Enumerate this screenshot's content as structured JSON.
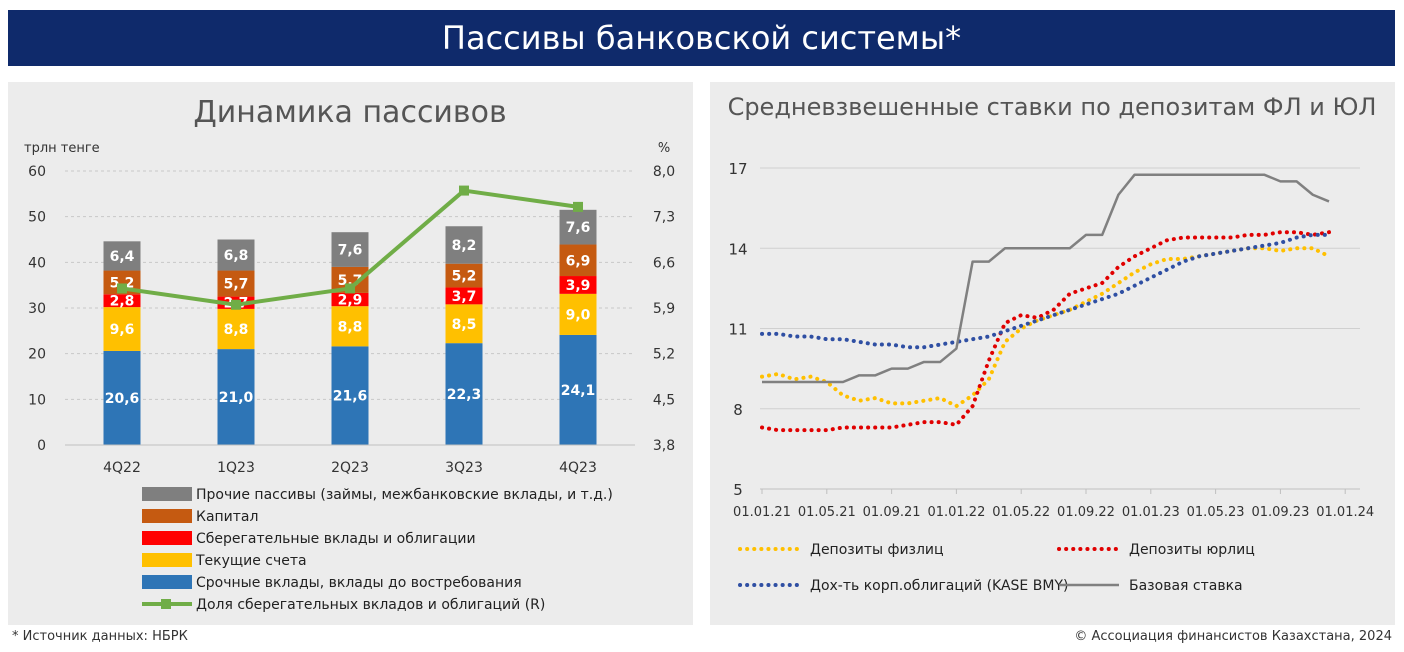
{
  "header": {
    "title": "Пассивы банковской системы*"
  },
  "footer": {
    "source": "* Источник данных: НБРК",
    "copyright": "© Ассоциация финансистов Казахстана, 2024"
  },
  "colors": {
    "banner": "#0f2a6b",
    "panel_bg": "#ececec",
    "grey": "#7f7f7f",
    "capital": "#c55a11",
    "savings": "#ff0000",
    "current": "#ffc000",
    "term": "#2e75b6",
    "share_line": "#70ad47",
    "fl": "#ffc000",
    "ul": "#e00000",
    "corp": "#2f4fa3",
    "base": "#808080"
  },
  "chart_data": [
    {
      "type": "bar",
      "stacked": true,
      "title": "Динамика пассивов",
      "ylabel": "трлн тенге",
      "y2label": "%",
      "ylim": [
        0,
        60
      ],
      "y2lim": [
        3.8,
        8.0
      ],
      "yticks": [
        "0",
        "10",
        "20",
        "30",
        "40",
        "50",
        "60"
      ],
      "y2ticks": [
        "3,8",
        "4,5",
        "5,2",
        "5,9",
        "6,6",
        "7,3",
        "8,0"
      ],
      "grid": true,
      "legend_position": "bottom",
      "categories": [
        "4Q22",
        "1Q23",
        "2Q23",
        "3Q23",
        "4Q23"
      ],
      "series": [
        {
          "name": "Срочные вклады, вклады до востребования",
          "color": "#2e75b6",
          "values": [
            20.6,
            21.0,
            21.6,
            22.3,
            24.1
          ],
          "labels": [
            "20,6",
            "21,0",
            "21,6",
            "22,3",
            "24,1"
          ]
        },
        {
          "name": "Текущие счета",
          "color": "#ffc000",
          "values": [
            9.6,
            8.8,
            8.8,
            8.5,
            9.0
          ],
          "labels": [
            "9,6",
            "8,8",
            "8,8",
            "8,5",
            "9,0"
          ]
        },
        {
          "name": "Сберегательные вклады и облигации",
          "color": "#ff0000",
          "values": [
            2.8,
            2.7,
            2.9,
            3.7,
            3.9
          ],
          "labels": [
            "2,8",
            "2,7",
            "2,9",
            "3,7",
            "3,9"
          ]
        },
        {
          "name": "Капитал",
          "color": "#c55a11",
          "values": [
            5.2,
            5.7,
            5.7,
            5.2,
            6.9
          ],
          "labels": [
            "5,2",
            "5,7",
            "5,7",
            "5,2",
            "6,9"
          ]
        },
        {
          "name": "Прочие пассивы (займы, межбанковские вклады, и т.д.)",
          "color": "#7f7f7f",
          "values": [
            6.4,
            6.8,
            7.6,
            8.2,
            7.6
          ],
          "labels": [
            "6,4",
            "6,8",
            "7,6",
            "8,2",
            "7,6"
          ]
        }
      ],
      "line_series": {
        "name": "Доля сберегательных вкладов и облигаций (R)",
        "color": "#70ad47",
        "axis": "right",
        "values": [
          6.2,
          5.95,
          6.2,
          7.7,
          7.45
        ]
      },
      "legend_order": [
        "Прочие пассивы (займы, межбанковские вклады, и т.д.)",
        "Капитал",
        "Сберегательные вклады и облигации",
        "Текущие счета",
        "Срочные вклады, вклады до востребования",
        "Доля сберегательных вкладов и облигаций (R)"
      ]
    },
    {
      "type": "line",
      "title": "Средневзвешенные ставки по депозитам ФЛ и ЮЛ",
      "ylim": [
        5,
        17
      ],
      "yticks": [
        "5",
        "8",
        "11",
        "14",
        "17"
      ],
      "x_tick_labels": [
        "01.01.21",
        "01.05.21",
        "01.09.21",
        "01.01.22",
        "01.05.22",
        "01.09.22",
        "01.01.23",
        "01.05.23",
        "01.09.23",
        "01.01.24"
      ],
      "grid": true,
      "legend_position": "bottom",
      "series": [
        {
          "name": "Депозиты физлиц",
          "style": "dotted",
          "color": "#ffc000",
          "x": [
            "2021-01",
            "2021-02",
            "2021-03",
            "2021-04",
            "2021-05",
            "2021-06",
            "2021-07",
            "2021-08",
            "2021-09",
            "2021-10",
            "2021-11",
            "2021-12",
            "2022-01",
            "2022-02",
            "2022-03",
            "2022-04",
            "2022-05",
            "2022-06",
            "2022-07",
            "2022-08",
            "2022-09",
            "2022-10",
            "2022-11",
            "2022-12",
            "2023-01",
            "2023-02",
            "2023-03",
            "2023-04",
            "2023-05",
            "2023-06",
            "2023-07",
            "2023-08",
            "2023-09",
            "2023-10",
            "2023-11",
            "2023-12"
          ],
          "y": [
            9.2,
            9.3,
            9.1,
            9.2,
            9.0,
            8.5,
            8.3,
            8.4,
            8.2,
            8.2,
            8.3,
            8.4,
            8.1,
            8.5,
            9.1,
            10.5,
            11.0,
            11.3,
            11.5,
            11.7,
            12.0,
            12.3,
            12.7,
            13.1,
            13.4,
            13.6,
            13.6,
            13.7,
            13.8,
            13.9,
            14.0,
            14.0,
            13.9,
            14.0,
            14.0,
            13.7
          ]
        },
        {
          "name": "Депозиты юрлиц",
          "style": "dotted",
          "color": "#e00000",
          "x": [
            "2021-01",
            "2021-02",
            "2021-03",
            "2021-04",
            "2021-05",
            "2021-06",
            "2021-07",
            "2021-08",
            "2021-09",
            "2021-10",
            "2021-11",
            "2021-12",
            "2022-01",
            "2022-02",
            "2022-03",
            "2022-04",
            "2022-05",
            "2022-06",
            "2022-07",
            "2022-08",
            "2022-09",
            "2022-10",
            "2022-11",
            "2022-12",
            "2023-01",
            "2023-02",
            "2023-03",
            "2023-04",
            "2023-05",
            "2023-06",
            "2023-07",
            "2023-08",
            "2023-09",
            "2023-10",
            "2023-11",
            "2023-12"
          ],
          "y": [
            7.3,
            7.2,
            7.2,
            7.2,
            7.2,
            7.3,
            7.3,
            7.3,
            7.3,
            7.4,
            7.5,
            7.5,
            7.4,
            8.1,
            9.8,
            11.2,
            11.5,
            11.4,
            11.7,
            12.3,
            12.5,
            12.7,
            13.3,
            13.7,
            14.0,
            14.3,
            14.4,
            14.4,
            14.4,
            14.4,
            14.5,
            14.5,
            14.6,
            14.6,
            14.5,
            14.6
          ]
        },
        {
          "name": "Дох-ть корп.облигаций (KASE BMY)",
          "style": "dotted",
          "color": "#2f4fa3",
          "x": [
            "2021-01",
            "2021-02",
            "2021-03",
            "2021-04",
            "2021-05",
            "2021-06",
            "2021-07",
            "2021-08",
            "2021-09",
            "2021-10",
            "2021-11",
            "2021-12",
            "2022-01",
            "2022-02",
            "2022-03",
            "2022-04",
            "2022-05",
            "2022-06",
            "2022-07",
            "2022-08",
            "2022-09",
            "2022-10",
            "2022-11",
            "2022-12",
            "2023-01",
            "2023-02",
            "2023-03",
            "2023-04",
            "2023-05",
            "2023-06",
            "2023-07",
            "2023-08",
            "2023-09",
            "2023-10",
            "2023-11",
            "2023-12"
          ],
          "y": [
            10.8,
            10.8,
            10.7,
            10.7,
            10.6,
            10.6,
            10.5,
            10.4,
            10.4,
            10.3,
            10.3,
            10.4,
            10.5,
            10.6,
            10.7,
            10.9,
            11.1,
            11.3,
            11.5,
            11.7,
            11.9,
            12.1,
            12.3,
            12.6,
            12.9,
            13.2,
            13.5,
            13.7,
            13.8,
            13.9,
            14.0,
            14.1,
            14.2,
            14.4,
            14.5,
            14.5
          ]
        },
        {
          "name": "Базовая ставка",
          "style": "solid",
          "color": "#808080",
          "x": [
            "2021-01",
            "2021-02",
            "2021-03",
            "2021-04",
            "2021-05",
            "2021-06",
            "2021-07",
            "2021-08",
            "2021-09",
            "2021-10",
            "2021-11",
            "2021-12",
            "2022-01",
            "2022-02",
            "2022-03",
            "2022-04",
            "2022-05",
            "2022-06",
            "2022-07",
            "2022-08",
            "2022-09",
            "2022-10",
            "2022-11",
            "2022-12",
            "2023-01",
            "2023-02",
            "2023-03",
            "2023-04",
            "2023-05",
            "2023-06",
            "2023-07",
            "2023-08",
            "2023-09",
            "2023-10",
            "2023-11",
            "2023-12"
          ],
          "y": [
            9.0,
            9.0,
            9.0,
            9.0,
            9.0,
            9.0,
            9.25,
            9.25,
            9.5,
            9.5,
            9.75,
            9.75,
            10.25,
            13.5,
            13.5,
            14.0,
            14.0,
            14.0,
            14.0,
            14.0,
            14.5,
            14.5,
            16.0,
            16.75,
            16.75,
            16.75,
            16.75,
            16.75,
            16.75,
            16.75,
            16.75,
            16.75,
            16.5,
            16.5,
            16.0,
            15.75
          ]
        }
      ]
    }
  ]
}
